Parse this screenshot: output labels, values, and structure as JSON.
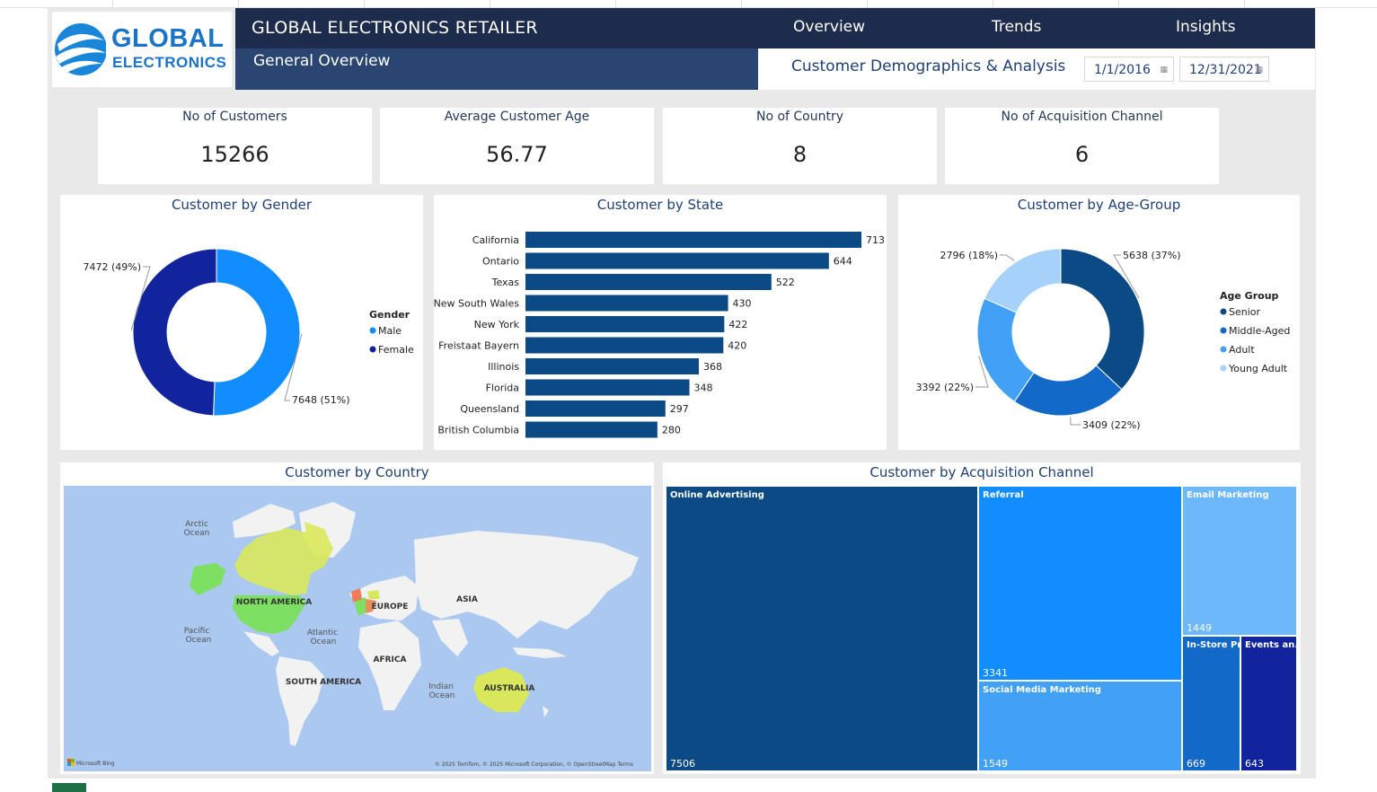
{
  "header": {
    "logo_line1": "GLOBAL",
    "logo_line2": "ELECTRONICS",
    "title": "GLOBAL ELECTRONICS RETAILER",
    "subtitle": "General Overview",
    "nav": [
      "Overview",
      "Trends",
      "Insights"
    ],
    "section": "Customer Demographics & Analysis",
    "date_start": "1/1/2016",
    "date_end": "12/31/2021"
  },
  "kpis": [
    {
      "label": "No of Customers",
      "value": "15266"
    },
    {
      "label": "Average Customer Age",
      "value": "56.77"
    },
    {
      "label": "No of Country",
      "value": "8"
    },
    {
      "label": "No of Acquisition Channel",
      "value": "6"
    }
  ],
  "gender": {
    "title": "Customer by Gender",
    "legend_title": "Gender",
    "slices": [
      {
        "name": "Male",
        "value": 7648,
        "label": "7648 (51%)",
        "color": "#118dff"
      },
      {
        "name": "Female",
        "value": 7472,
        "label": "7472 (49%)",
        "color": "#12239e"
      }
    ]
  },
  "state": {
    "title": "Customer by State",
    "color": "#0b4a85",
    "bars": [
      {
        "name": "California",
        "value": 713
      },
      {
        "name": "Ontario",
        "value": 644
      },
      {
        "name": "Texas",
        "value": 522
      },
      {
        "name": "New South Wales",
        "value": 430
      },
      {
        "name": "New York",
        "value": 422
      },
      {
        "name": "Freistaat Bayern",
        "value": 420
      },
      {
        "name": "Illinois",
        "value": 368
      },
      {
        "name": "Florida",
        "value": 348
      },
      {
        "name": "Queensland",
        "value": 297
      },
      {
        "name": "British Columbia",
        "value": 280
      }
    ]
  },
  "agegroup": {
    "title": "Customer by Age-Group",
    "legend_title": "Age Group",
    "slices": [
      {
        "name": "Senior",
        "value": 5638,
        "label": "5638 (37%)",
        "color": "#0b4a85"
      },
      {
        "name": "Middle-Aged",
        "value": 3409,
        "label": "3409 (22%)",
        "color": "#1369c8"
      },
      {
        "name": "Adult",
        "value": 3392,
        "label": "3392 (22%)",
        "color": "#42a0f5"
      },
      {
        "name": "Young Adult",
        "value": 2796,
        "label": "2796 (18%)",
        "color": "#a6d1fb"
      }
    ]
  },
  "country": {
    "title": "Customer by Country",
    "labels": {
      "arctic1": "Arctic",
      "arctic2": "Ocean",
      "pacific1": "Pacific",
      "pacific2": "Ocean",
      "atlantic1": "Atlantic",
      "atlantic2": "Ocean",
      "indian1": "Indian",
      "indian2": "Ocean",
      "north_america": "NORTH AMERICA",
      "south_america": "SOUTH AMERICA",
      "europe": "EUROPE",
      "asia": "ASIA",
      "africa": "AFRICA",
      "australia": "AUSTRALIA"
    },
    "attribution": "© 2025 TomTom, © 2025 Microsoft Corporation, © OpenStreetMap  Terms",
    "brand": "Microsoft Bing"
  },
  "channel": {
    "title": "Customer by Acquisition Channel",
    "tiles": [
      {
        "name": "Online Advertising",
        "value": "7506",
        "color": "#0b4a85"
      },
      {
        "name": "Referral",
        "value": "3341",
        "color": "#118dff"
      },
      {
        "name": "Social Media Marketing",
        "value": "1549",
        "color": "#42a0f5"
      },
      {
        "name": "Email Marketing",
        "value": "1449",
        "color": "#6db8fb"
      },
      {
        "name": "In-Store Pr...",
        "value": "669",
        "color": "#1369c8"
      },
      {
        "name": "Events an...",
        "value": "643",
        "color": "#12239e"
      }
    ]
  }
}
